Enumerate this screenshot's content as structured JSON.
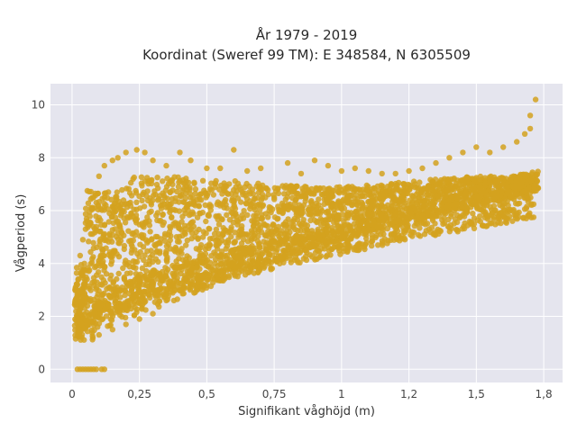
{
  "chart_data": {
    "type": "scatter",
    "title_lines": [
      "År 1979 - 2019",
      "Koordinat (Sweref 99 TM): E 348584, N 6305509"
    ],
    "xlabel": "Signifikant våghöjd (m)",
    "ylabel": "Vågperiod (s)",
    "xlim": [
      -0.08,
      1.82
    ],
    "ylim": [
      -0.5,
      10.8
    ],
    "x_ticks": [
      0,
      0.25,
      0.5,
      0.75,
      1,
      1.25,
      1.5,
      1.75
    ],
    "x_tick_labels": [
      "0",
      "0,25",
      "0,5",
      "0,75",
      "1",
      "1,2",
      "1,5",
      "1,8"
    ],
    "y_ticks": [
      0,
      2,
      4,
      6,
      8,
      10
    ],
    "y_tick_labels": [
      "0",
      "2",
      "4",
      "6",
      "8",
      "10"
    ],
    "grid": true,
    "legend": "none",
    "series": [
      {
        "color": "#d4a21e",
        "points": [
          [
            0.02,
            0
          ],
          [
            0.03,
            0
          ],
          [
            0.04,
            0
          ],
          [
            0.05,
            0
          ],
          [
            0.06,
            0
          ],
          [
            0.07,
            0
          ],
          [
            0.08,
            0
          ],
          [
            0.09,
            0
          ],
          [
            0.11,
            0
          ],
          [
            0.12,
            0
          ],
          [
            0.01,
            1.65
          ],
          [
            0.02,
            3.2
          ],
          [
            0.03,
            4.3
          ],
          [
            0.04,
            4.9
          ],
          [
            0.05,
            5.3
          ],
          [
            0.07,
            6.1
          ],
          [
            0.08,
            6.5
          ],
          [
            0.09,
            6.3
          ],
          [
            0.1,
            7.3
          ],
          [
            0.12,
            7.7
          ],
          [
            0.15,
            7.9
          ],
          [
            0.17,
            8.0
          ],
          [
            0.2,
            8.2
          ],
          [
            0.24,
            8.3
          ],
          [
            0.27,
            8.2
          ],
          [
            0.3,
            7.9
          ],
          [
            0.35,
            7.7
          ],
          [
            0.4,
            8.2
          ],
          [
            0.44,
            7.9
          ],
          [
            0.5,
            7.6
          ],
          [
            0.55,
            7.6
          ],
          [
            0.6,
            8.3
          ],
          [
            0.65,
            7.5
          ],
          [
            0.7,
            7.6
          ],
          [
            0.8,
            7.8
          ],
          [
            0.85,
            7.4
          ],
          [
            0.9,
            7.9
          ],
          [
            0.95,
            7.7
          ],
          [
            1.0,
            7.5
          ],
          [
            1.05,
            7.6
          ],
          [
            1.1,
            7.5
          ],
          [
            1.15,
            7.4
          ],
          [
            1.2,
            7.4
          ],
          [
            1.25,
            7.5
          ],
          [
            1.3,
            7.6
          ],
          [
            1.35,
            7.8
          ],
          [
            1.4,
            8.0
          ],
          [
            1.45,
            8.2
          ],
          [
            1.5,
            8.4
          ],
          [
            1.55,
            8.2
          ],
          [
            1.6,
            8.4
          ],
          [
            1.65,
            8.6
          ],
          [
            1.68,
            8.9
          ],
          [
            1.7,
            9.1
          ],
          [
            1.72,
            10.2
          ],
          [
            1.7,
            9.6
          ],
          [
            0.1,
            1.3
          ],
          [
            0.15,
            1.5
          ],
          [
            0.2,
            1.7
          ],
          [
            0.25,
            1.9
          ],
          [
            0.3,
            2.1
          ],
          [
            0.35,
            2.6
          ],
          [
            0.4,
            3.0
          ],
          [
            0.45,
            3.2
          ],
          [
            0.5,
            3.6
          ],
          [
            0.55,
            3.7
          ],
          [
            0.6,
            4.0
          ],
          [
            0.7,
            4.2
          ],
          [
            0.8,
            4.5
          ],
          [
            0.9,
            4.7
          ],
          [
            1.0,
            5.0
          ],
          [
            1.1,
            5.3
          ],
          [
            1.2,
            5.6
          ],
          [
            1.3,
            5.8
          ],
          [
            1.4,
            6.2
          ],
          [
            1.5,
            6.5
          ],
          [
            1.6,
            7.0
          ]
        ]
      }
    ]
  }
}
